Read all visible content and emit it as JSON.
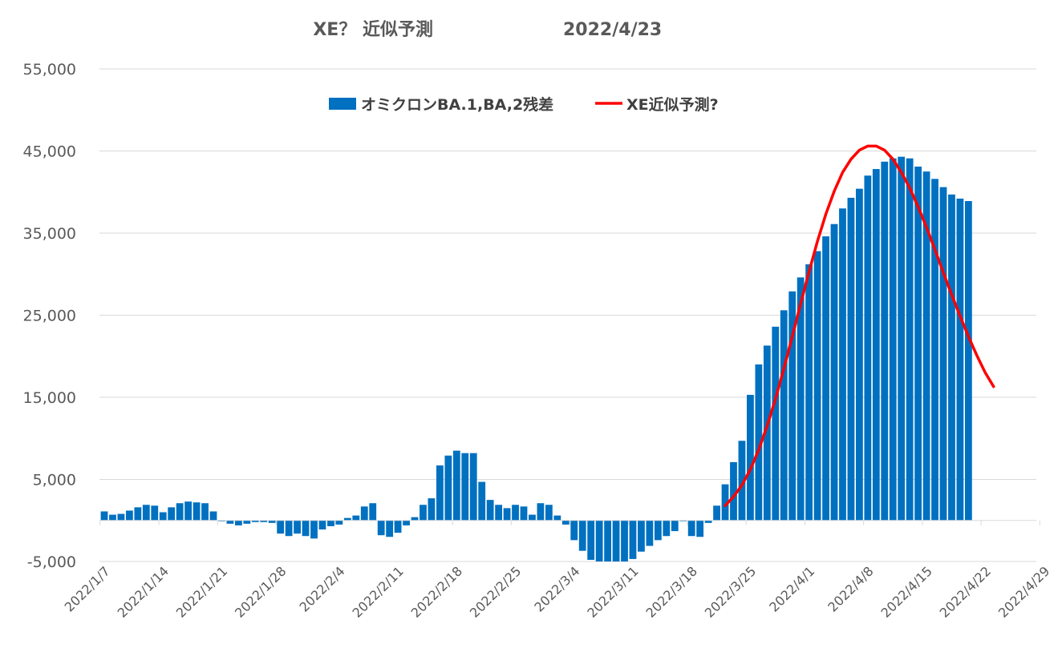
{
  "chart_data": {
    "type": "bar",
    "title": "XE？ 近似予測",
    "title_date": "2022/4/23",
    "start_date": "2022/1/7",
    "end_date": "2022/4/30",
    "ylim": [
      -5000,
      55000
    ],
    "yticks": [
      -5000,
      5000,
      15000,
      25000,
      35000,
      45000,
      55000
    ],
    "ytick_labels": [
      "-5,000",
      "5,000",
      "15,000",
      "25,000",
      "35,000",
      "45,000",
      "55,000"
    ],
    "xtick_labels": [
      "2022/1/7",
      "2022/1/14",
      "2022/1/21",
      "2022/1/28",
      "2022/2/4",
      "2022/2/11",
      "2022/2/18",
      "2022/2/25",
      "2022/3/4",
      "2022/3/11",
      "2022/3/18",
      "2022/3/25",
      "2022/4/1",
      "2022/4/8",
      "2022/4/15",
      "2022/4/22",
      "2022/4/29"
    ],
    "grid": true,
    "legend_position": "top",
    "series": [
      {
        "name": "オミクロンBA.1,BA,2残差",
        "kind": "bar",
        "color": "#0070C0",
        "values": [
          1100,
          700,
          800,
          1200,
          1600,
          1900,
          1800,
          1000,
          1600,
          2100,
          2300,
          2200,
          2100,
          1100,
          -100,
          -400,
          -600,
          -400,
          -200,
          -200,
          -300,
          -1600,
          -1900,
          -1600,
          -1900,
          -2200,
          -1100,
          -700,
          -500,
          300,
          600,
          1700,
          2100,
          -1800,
          -2000,
          -1500,
          -600,
          400,
          1900,
          2700,
          6700,
          7900,
          8500,
          8200,
          8200,
          4700,
          2500,
          1900,
          1500,
          1900,
          1700,
          700,
          2100,
          1900,
          600,
          -500,
          -2400,
          -3700,
          -4800,
          -5000,
          -5000,
          -5000,
          -5000,
          -4700,
          -3800,
          -3100,
          -2400,
          -1900,
          -1300,
          -100,
          -1900,
          -2000,
          -300,
          1800,
          4400,
          7100,
          9700,
          15300,
          19000,
          21300,
          23600,
          25600,
          27900,
          29600,
          31200,
          32800,
          34600,
          36100,
          38000,
          39300,
          40400,
          42000,
          42800,
          43700,
          44100,
          44300,
          44100,
          43100,
          42500,
          41600,
          40600,
          39700,
          39200,
          38900
        ]
      },
      {
        "name": "XE近似予測?",
        "kind": "line",
        "color": "#FF0000",
        "start_index": 74,
        "values": [
          1800,
          2900,
          4300,
          6200,
          8600,
          11500,
          14800,
          18500,
          22400,
          26400,
          30300,
          34000,
          37300,
          40100,
          42400,
          44000,
          45100,
          45600,
          45600,
          45100,
          44000,
          42400,
          40500,
          38200,
          35700,
          33000,
          30200,
          27500,
          24900,
          22400,
          20100,
          18000,
          16300
        ]
      }
    ]
  }
}
